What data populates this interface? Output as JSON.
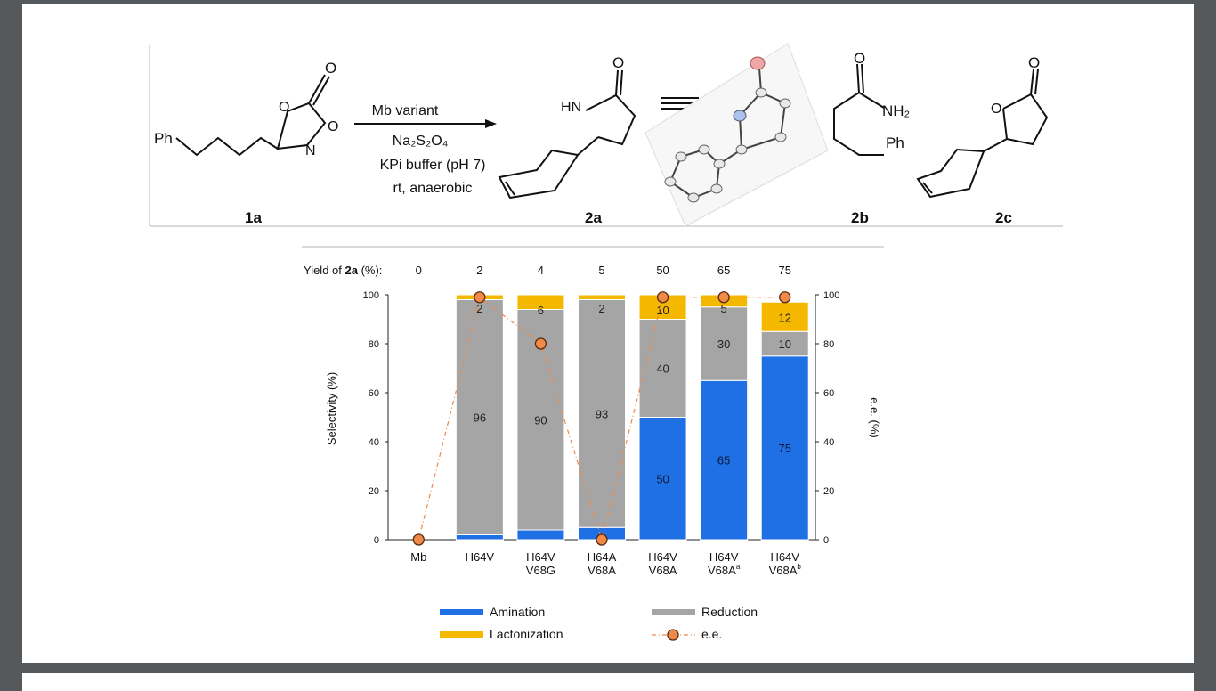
{
  "scheme": {
    "substrate_label": "1a",
    "substrate_group": "Ph",
    "conditions": [
      "Mb variant",
      "Na₂S₂O₄",
      "KPi buffer (pH 7)",
      "rt, anaerobic"
    ],
    "products": [
      {
        "label": "2a",
        "atoms": [
          "HN",
          "O"
        ]
      },
      {
        "label": "2b",
        "atoms": [
          "O",
          "NH₂",
          "Ph"
        ]
      },
      {
        "label": "2c",
        "atoms": [
          "O",
          "O"
        ]
      }
    ],
    "equivalence_symbol": "≡"
  },
  "chart_data": {
    "type": "bar",
    "stacked": true,
    "categories": [
      "Mb",
      "H64V",
      "H64V V68G",
      "H64A V68A",
      "H64V V68A",
      "H64V V68Aᵃ",
      "H64V V68Aᵇ"
    ],
    "category_lines": [
      [
        "Mb"
      ],
      [
        "H64V"
      ],
      [
        "H64V",
        "V68G"
      ],
      [
        "H64A",
        "V68A"
      ],
      [
        "H64V",
        "V68A"
      ],
      [
        "H64V",
        "V68A",
        "a"
      ],
      [
        "H64V",
        "V68A",
        "b"
      ]
    ],
    "yield_label_prefix": "Yield of ",
    "yield_label_bold": "2a",
    "yield_label_suffix": " (%):",
    "yield": [
      "0",
      "2",
      "4",
      "5",
      "50",
      "65",
      "75"
    ],
    "series": [
      {
        "name": "Amination",
        "color": "#1f6fe5",
        "values": [
          0,
          2,
          4,
          5,
          50,
          65,
          75
        ]
      },
      {
        "name": "Reduction",
        "color": "#a5a5a5",
        "values": [
          0,
          96,
          90,
          93,
          40,
          30,
          10
        ]
      },
      {
        "name": "Lactonization",
        "color": "#f5b800",
        "values": [
          0,
          2,
          6,
          2,
          10,
          5,
          12
        ]
      }
    ],
    "ee": {
      "name": "e.e.",
      "color": "#f08a48",
      "values": [
        0,
        99,
        80,
        0,
        99,
        99,
        99
      ]
    },
    "ylabel": "Selectivity (%)",
    "y2label": "e.e. (%)",
    "ylim": [
      0,
      100
    ],
    "yticks": [
      0,
      20,
      40,
      60,
      80,
      100
    ],
    "legend_position": "bottom"
  }
}
